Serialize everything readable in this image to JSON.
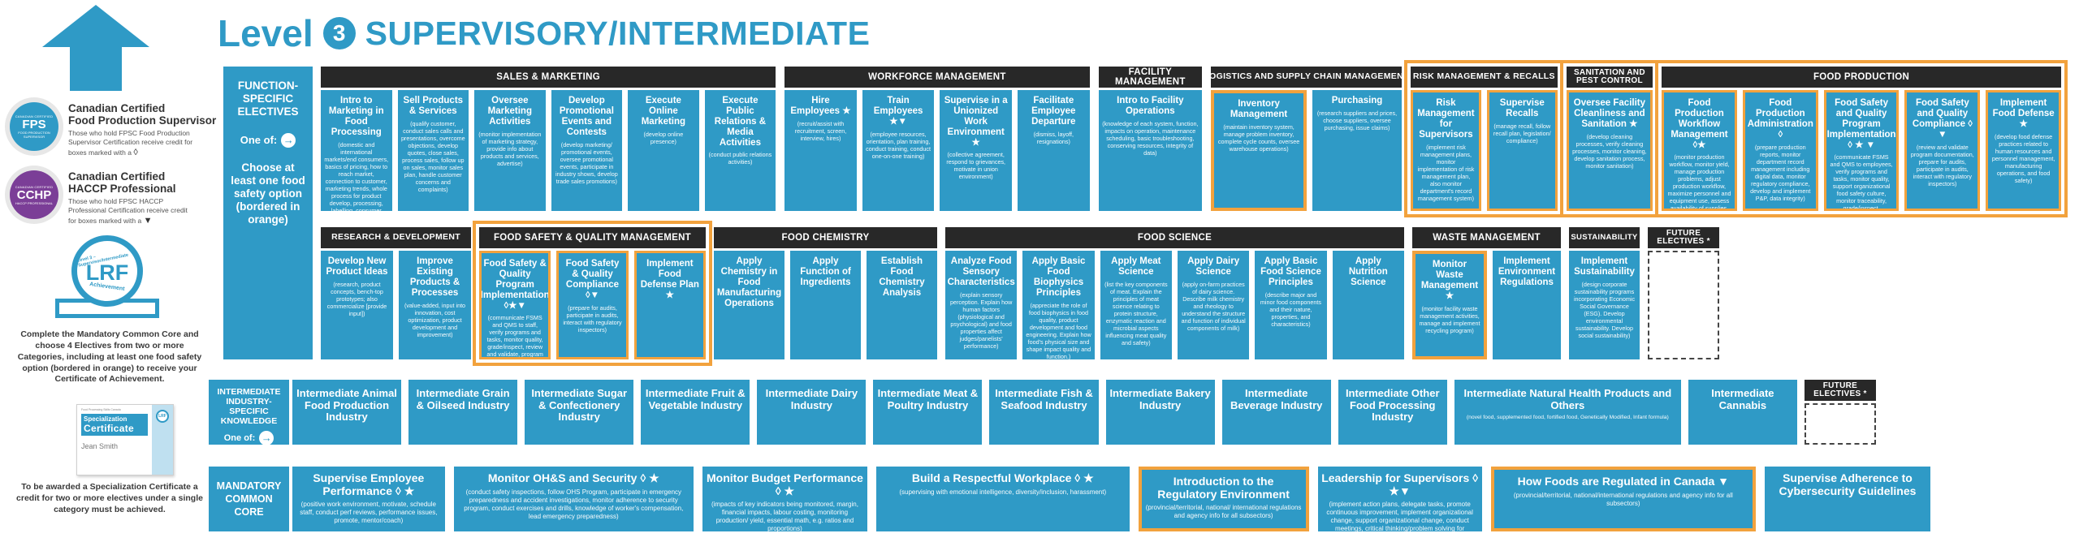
{
  "title": {
    "level_word": "Level",
    "level_number": "3",
    "heading": "SUPERVISORY/INTERMEDIATE"
  },
  "colors": {
    "blue": "#2f9ac6",
    "orange": "#f2a23d",
    "header_black": "#282828",
    "cchp_purple": "#7b3e97"
  },
  "legend": {
    "fps": {
      "badge_top": "CANADIAN CERTIFIED",
      "badge_label": "FPS",
      "badge_bottom": "FOOD PRODUCTION SUPERVISOR",
      "name_line1": "Canadian Certified",
      "name_line2": "Food Production Supervisor",
      "desc": "Those who hold FPSC Food Production Supervisor Certification receive credit for boxes marked with a",
      "symbol": "◊"
    },
    "cchp": {
      "badge_top": "CANADIAN CERTIFIED",
      "badge_label": "CCHP",
      "badge_bottom": "HACCP PROFESSIONAL",
      "name_line1": "Canadian Certified",
      "name_line2": "HACCP Professional",
      "desc": "Those who hold FPSC HACCP Professional Certification receive credit for boxes marked with a",
      "symbol": "▼"
    },
    "seal": {
      "arc_top": "Level 3 – Supervisor/Intermediate",
      "label": "LRF",
      "arc_bottom": "Achievement"
    },
    "achievement_text": "Complete the Mandatory Common Core and choose 4 Electives from two or more Categories, including at least one food safety option (bordered in orange) to receive your Certificate of Achievement.",
    "certificate": {
      "org": "Food Processing Skills Canada",
      "title_line1": "Specialization",
      "title_line2": "Certificate",
      "awarded_to": "Jean Smith",
      "seal_label": "LRF"
    },
    "specialization_text": "To be awarded a Specialization Certificate a credit for two or more electives under a single category must be achieved."
  },
  "labels": {
    "electives": {
      "title": "FUNCTION-SPECIFIC ELECTIVES",
      "one_of": "One of:",
      "arrow": "→",
      "note": "Choose at least one food safety option (bordered in orange)"
    },
    "industry": {
      "title": "INTERMEDIATE INDUSTRY-SPECIFIC KNOWLEDGE",
      "one_of": "One of:",
      "arrow": "→"
    },
    "core": {
      "title": "MANDATORY COMMON CORE"
    }
  },
  "row1": [
    {
      "name": "SALES & MARKETING",
      "orange": false,
      "boxes": [
        {
          "title": "Intro to Marketing in Food Processing",
          "desc": "(domestic and international markets/end consumers, basics of pricing, how to reach market, connection to customer, marketing trends, whole process for product develop, processing, labelling, consumer sales plan, handle customer concerns and complaints)"
        },
        {
          "title": "Sell Products & Services",
          "desc": "(qualify customer, conduct sales calls and presentations, overcome objections, develop quotes, close sales, process sales, follow up on sales, monitor sales plan, handle customer concerns and complaints)"
        },
        {
          "title": "Oversee Marketing Activities",
          "desc": "(monitor implementation of marketing strategy, provide info about products and services, advertise)"
        },
        {
          "title": "Develop Promotional Events and Contests",
          "desc": "(develop marketing/ promotional events, oversee promotional events, participate in industry shows, develop trade sales promotions)"
        },
        {
          "title": "Execute Online Marketing",
          "desc": "(develop online presence)"
        },
        {
          "title": "Execute Public Relations & Media Activities",
          "desc": "(conduct public relations activities)"
        }
      ]
    },
    {
      "name": "WORKFORCE MANAGEMENT",
      "orange": false,
      "boxes": [
        {
          "title": "Hire Employees ★",
          "desc": "(recruit/assist with recruitment, screen, interview, hires)"
        },
        {
          "title": "Train Employees ★▼",
          "desc": "(employee resources, orientation, plan training, conduct training, conduct one-on-one training)"
        },
        {
          "title": "Supervise in a Unionized Work Environment ★",
          "desc": "(collective agreement, respond to grievances, motivate in union environment)"
        },
        {
          "title": "Facilitate Employee Departure",
          "desc": "(dismiss, layoff, resignations)"
        }
      ]
    },
    {
      "name": "FACILITY MANAGEMENT",
      "orange": false,
      "boxes": [
        {
          "title": "Intro to Facility Operations",
          "desc": "(knowledge of each system, function, impacts on operation, maintenance scheduling, basic troubleshooting, conserving resources, integrity of data)"
        }
      ]
    },
    {
      "name": "LOGISTICS AND SUPPLY CHAIN MANAGEMENT",
      "orange": false,
      "boxes": [
        {
          "title": "Inventory Management",
          "orange": true,
          "desc": "(maintain inventory system, manage problem inventory, complete cycle counts, oversee warehouse operations)"
        },
        {
          "title": "Purchasing",
          "desc": "(research suppliers and prices, choose suppliers, oversee purchasing, issue claims)"
        }
      ]
    },
    {
      "name": "RISK MANAGEMENT & RECALLS",
      "orange": true,
      "boxes": [
        {
          "title": "Risk Management for Supervisors",
          "desc": "(implement risk management plans, monitor implementation of risk management plan, also monitor department's record management system)"
        },
        {
          "title": "Supervise Recalls",
          "desc": "(manage recall, follow recall plan, legislation/ compliance)"
        }
      ]
    },
    {
      "name": "SANITATION AND PEST CONTROL",
      "orange": true,
      "boxes": [
        {
          "title": "Oversee Facility Cleanliness and Sanitation ★",
          "desc": "(develop cleaning processes, verify cleaning processes, monitor cleaning, develop sanitation process, monitor sanitation)"
        }
      ]
    },
    {
      "name": "FOOD PRODUCTION",
      "orange": true,
      "boxes": [
        {
          "title": "Food Production Workflow Management ◊★",
          "desc": "(monitor production workflow, monitor yield, manage production problems, adjust production workflow, maximize personnel and equipment use, assess availability of supplies, data integrity)"
        },
        {
          "title": "Food Production Administration ◊",
          "desc": "(prepare production reports, monitor department record management including digital data, monitor regulatory compliance, develop and implement P&P, data integrity)"
        },
        {
          "title": "Food Safety and Quality Program Implementation ◊ ★ ▼",
          "desc": "(communicate FSMS and QMS to employees, verify programs and tasks, monitor quality, support organizational food safety culture, monitor traceability, grade/inspect, implement and monitor pest management, take corrective action)"
        },
        {
          "title": "Food Safety and Quality Compliance ◊ ▼",
          "desc": "(review and validate program documentation, prepare for audits, participate in audits, interact with regulatory inspectors)"
        },
        {
          "title": "Implement Food Defense ★",
          "desc": "(develop food defense practices related to human resources and personnel management, manufacturing operations, and food safety)"
        }
      ]
    }
  ],
  "row2": [
    {
      "name": "RESEARCH & DEVELOPMENT",
      "orange": false,
      "boxes": [
        {
          "title": "Develop New Product Ideas",
          "desc": "(research, product concepts, bench-top prototypes; also commercialize [provide input])"
        },
        {
          "title": "Improve Existing Products & Processes",
          "desc": "(value-added, input into innovation, cost optimization, product development and improvement)"
        }
      ]
    },
    {
      "name": "FOOD SAFETY & QUALITY MANAGEMENT",
      "orange": true,
      "boxes": [
        {
          "title": "Food Safety & Quality Program Implementation ◊★▼",
          "desc": "(communicate FSMS and QMS to staff, verify programs and tasks, monitor quality, grade/inspect, review and validate, program documentation, implement corrective action)"
        },
        {
          "title": "Food Safety & Quality Compliance ◊▼",
          "desc": "(prepare for audits, participate in audits, interact with regulatory inspectors)"
        },
        {
          "title": "Implement Food Defense Plan ★",
          "desc": ""
        }
      ]
    },
    {
      "name": "FOOD CHEMISTRY",
      "orange": false,
      "boxes": [
        {
          "title": "Apply Chemistry in Food Manufacturing Operations",
          "desc": ""
        },
        {
          "title": "Apply Function of Ingredients",
          "desc": ""
        },
        {
          "title": "Establish Food Chemistry Analysis",
          "desc": ""
        }
      ]
    },
    {
      "name": "FOOD SCIENCE",
      "orange": false,
      "boxes": [
        {
          "title": "Analyze Food Sensory Characteristics",
          "desc": "(explain sensory perception. Explain how human factors (physiological and psychological) and food properties affect judges/panelists' performance)"
        },
        {
          "title": "Apply Basic Food Biophysics Principles",
          "desc": "(appreciate the role of food biophysics in food quality, product development and food engineering. Explain how food's physical size and shape impact quality and function.)"
        },
        {
          "title": "Apply Meat Science",
          "desc": "(list the key components of meat. Explain the principles of meat science relating to protein structure, enzymatic reaction and microbial aspects influencing meat quality and safety)"
        },
        {
          "title": "Apply Dairy Science",
          "desc": "(apply on-farm practices of dairy science. Describe milk chemistry and rheology to understand the structure and function of individual components of milk)"
        },
        {
          "title": "Apply Basic Food Science Principles",
          "desc": "(describe major and minor food components and their nature, properties, and characteristics)"
        },
        {
          "title": "Apply Nutrition Science",
          "desc": ""
        }
      ]
    },
    {
      "name": "WASTE MANAGEMENT",
      "orange": false,
      "boxes": [
        {
          "title": "Monitor Waste Management ★",
          "orange": true,
          "desc": "(monitor facility waste management activities, manage and implement recycling program)"
        },
        {
          "title": "Implement Environment Regulations",
          "desc": ""
        }
      ]
    },
    {
      "name": "SUSTAINABILITY",
      "orange": false,
      "boxes": [
        {
          "title": "Implement Sustainability",
          "desc": "(design corporate sustainability programs incorporating Economic Social Governance (ESG). Develop environmental sustainability. Develop social sustainability)"
        }
      ]
    },
    {
      "future": true,
      "title": "FUTURE ELECTIVES *"
    }
  ],
  "row3": {
    "boxes": [
      {
        "title": "Intermediate Animal Food Production Industry"
      },
      {
        "title": "Intermediate Grain & Oilseed Industry"
      },
      {
        "title": "Intermediate Sugar & Confectionery Industry"
      },
      {
        "title": "Intermediate Fruit & Vegetable Industry"
      },
      {
        "title": "Intermediate Dairy Industry"
      },
      {
        "title": "Intermediate Meat & Poultry Industry"
      },
      {
        "title": "Intermediate Fish & Seafood Industry"
      },
      {
        "title": "Intermediate Bakery Industry"
      },
      {
        "title": "Intermediate Beverage Industry"
      },
      {
        "title": "Intermediate Other Food Processing Industry"
      },
      {
        "title": "Intermediate Natural Health Products and Others",
        "desc": "(novel food, supplemented food, fortified food, Genetically Modified, Infant formula)"
      },
      {
        "title": "Intermediate Cannabis"
      },
      {
        "future": true,
        "title": "FUTURE ELECTIVES *"
      }
    ]
  },
  "row4": {
    "boxes": [
      {
        "title": "Supervise Employee Performance ◊ ★",
        "desc": "(positive work environment, motivate, schedule staff, conduct perf reviews, performance issues, promote, mentor/coach)"
      },
      {
        "title": "Monitor OH&S and Security ◊ ★",
        "desc": "(conduct safety inspections, follow OHS Program, participate in emergency preparedness and accident investigations, monitor adherence to security program, conduct exercises and drills, knowledge of worker's compensation, lead emergency preparedness)"
      },
      {
        "title": "Monitor Budget Performance ◊ ★",
        "desc": "(impacts of key indicators being monitored, margin, financial impacts, labour costing, monitoring production/ yield, essential math, e.g. ratios and proportions)"
      },
      {
        "title": "Build a Respectful Workplace ◊ ★",
        "desc": "(supervising with emotional intelligence, diversity/inclusion, harassment)"
      },
      {
        "title": "Introduction to the Regulatory Environment",
        "orange": true,
        "desc": "(provincial/territorial, national/ international regulations and agency info for all subsectors)"
      },
      {
        "title": "Leadership for Supervisors ◊ ★▼",
        "desc": "(implement action plans, delegate tasks, promote continuous improvement, implement organizational change, support organizational change, conduct meetings, critical thinking/problem solving for supervisor, manage internal communication)"
      },
      {
        "title": "How Foods are Regulated in Canada ▼",
        "orange": true,
        "desc": "(provincial/territorial, national/international regulations and agency info for all subsectors)"
      },
      {
        "title": "Supervise Adherence to Cybersecurity Guidelines",
        "desc": ""
      }
    ]
  }
}
